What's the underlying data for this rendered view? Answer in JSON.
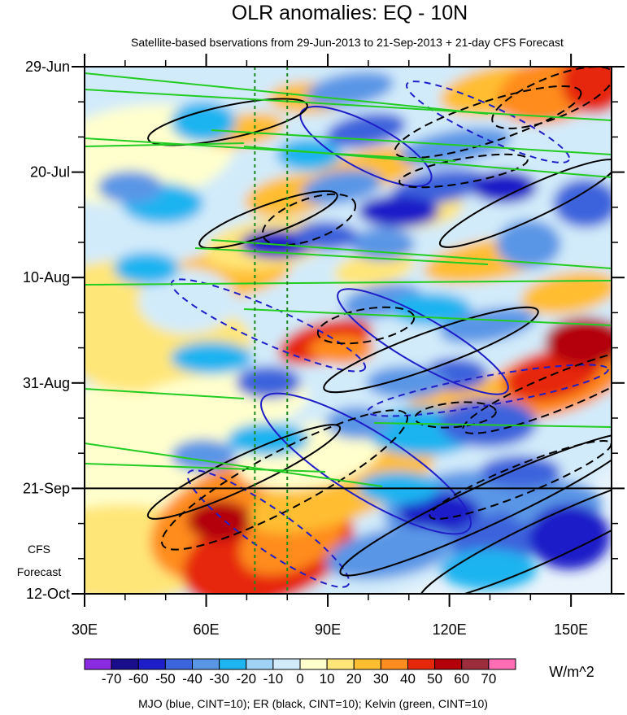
{
  "chart_data": {
    "type": "heatmap",
    "title": "OLR anomalies: EQ - 10N",
    "subtitle": "Satellite-based bservations from 29-Jun-2013 to 21-Sep-2013 + 21-day CFS Forecast",
    "x_ticks": [
      "30E",
      "60E",
      "90E",
      "120E",
      "150E"
    ],
    "x_tick_values": [
      30,
      60,
      90,
      120,
      150
    ],
    "xlim": [
      30,
      160
    ],
    "y_ticks": [
      "29-Jun",
      "20-Jul",
      "10-Aug",
      "31-Aug",
      "21-Sep",
      "12-Oct"
    ],
    "ylim": [
      "2013-06-29",
      "2013-10-12"
    ],
    "observation_end": "2013-09-21",
    "reference_lines_lon": [
      72,
      80
    ],
    "forecast_label": [
      "CFS",
      "Forecast"
    ],
    "colorbar": {
      "units": "W/m^2",
      "labels": [
        "-70",
        "-60",
        "-50",
        "-40",
        "-30",
        "-20",
        "-10",
        "0",
        "10",
        "20",
        "30",
        "40",
        "50",
        "60",
        "70"
      ],
      "colors": [
        "#8a2be2",
        "#1a0d8c",
        "#1e1ec8",
        "#3c64dc",
        "#5a96e6",
        "#1eb4f0",
        "#a0d2f5",
        "#d2ebfa",
        "#ffffcd",
        "#ffe678",
        "#ffbe32",
        "#ff8c1e",
        "#e6280a",
        "#b4000a",
        "#9b2d3c",
        "#ff6eb4"
      ]
    },
    "contour_legend": "MJO (blue, CINT=10); ER (black, CINT=10); Kelvin (green, CINT=10)",
    "series_colors": {
      "MJO": "#1e1ec8",
      "ER": "#000000",
      "Kelvin": "#22cc22"
    }
  }
}
